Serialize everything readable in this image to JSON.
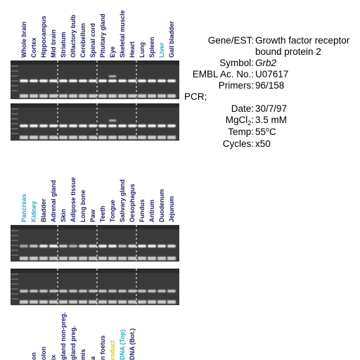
{
  "panel_top": {
    "lanes": [
      {
        "label": "Whole brain",
        "color": "#1c1c70"
      },
      {
        "label": "Cortex",
        "color": "#1c1c70"
      },
      {
        "label": "Hippocampus",
        "color": "#1c1c70"
      },
      {
        "label": "Mid brain",
        "color": "#1c1c70"
      },
      {
        "label": "Striatum",
        "color": "#1c1c70"
      },
      {
        "label": "Olfactory bulb",
        "color": "#1c1c70"
      },
      {
        "label": "Cerebellum",
        "color": "#1c1c70"
      },
      {
        "label": "Spinal cord",
        "color": "#1c1c70"
      },
      {
        "label": "Pituitary gland",
        "color": "#1c1c70"
      },
      {
        "label": "Eye",
        "color": "#1c1c70"
      },
      {
        "label": "Skeletal muscle",
        "color": "#1c1c70"
      },
      {
        "label": "Heart",
        "color": "#1c1c70"
      },
      {
        "label": "Lung",
        "color": "#1c1c70"
      },
      {
        "label": "Spleen",
        "color": "#1c1c70"
      },
      {
        "label": "Liver",
        "color": "#22a8d8"
      },
      {
        "label": "Gall bladder",
        "color": "#1c1c70"
      }
    ]
  },
  "info": {
    "gene": {
      "key": "Gene/EST:",
      "lines": [
        "Growth factor receptor",
        "bound protein 2"
      ]
    },
    "symbol": {
      "key": "Symbol:",
      "value": "Grb2"
    },
    "embl": {
      "key": "EMBL Ac. No.:",
      "value": "U07617"
    },
    "primers": {
      "key": "Primers:",
      "value": "96/158"
    },
    "pcr": "PCR;",
    "date": {
      "key": "Date:",
      "value": "30/7/97"
    },
    "mgcl": {
      "key": "MgCl",
      "sub": "2",
      "colon": ":",
      "value": "3.5 mM"
    },
    "temp": {
      "key": "Temp:",
      "value": "55",
      "sup": "o",
      "unit": "C"
    },
    "cycles": {
      "key": "Cycles:",
      "value": "x50"
    }
  },
  "panel_middle": {
    "lanes": [
      {
        "label": "Pancreas",
        "color": "#22a8d8"
      },
      {
        "label": "Kidney",
        "color": "#22a8d8"
      },
      {
        "label": "Bladder",
        "color": "#1c1c70"
      },
      {
        "label": "Adrenal gland",
        "color": "#1c1c70"
      },
      {
        "label": "Skin",
        "color": "#1c1c70"
      },
      {
        "label": "Adipose tissue",
        "color": "#1c1c70"
      },
      {
        "label": "Long bone",
        "color": "#1c1c70"
      },
      {
        "label": "Paw",
        "color": "#1c1c70"
      },
      {
        "label": "Teeth",
        "color": "#1c1c70"
      },
      {
        "label": "Tongue",
        "color": "#1c1c70"
      },
      {
        "label": "Salivary gland",
        "color": "#1c1c70"
      },
      {
        "label": "Oesophagus",
        "color": "#1c1c70"
      },
      {
        "label": "Fundus",
        "color": "#1c1c70"
      },
      {
        "label": "Antrum",
        "color": "#1c1c70"
      },
      {
        "label": "Duodenum",
        "color": "#1c1c70"
      },
      {
        "label": "Jejunum",
        "color": "#1c1c70"
      }
    ]
  },
  "panel_bottom": {
    "lanes": [
      {
        "label": "on",
        "color": "#1c1c70"
      },
      {
        "label": "olon",
        "color": "#1c1c70"
      },
      {
        "label": "ix",
        "color": "#1c1c70"
      },
      {
        "label": "gland non-preg.",
        "color": "#1c1c70"
      },
      {
        "label": "gland preg.",
        "color": "#1c1c70"
      },
      {
        "label": "mis",
        "color": "#1c1c70"
      },
      {
        "label": "a",
        "color": "#1c1c70"
      },
      {
        "label": "n foetus",
        "color": "#1c1c70"
      },
      {
        "label": "roduct",
        "color": "#e8c020"
      },
      {
        "label": "DNA (Top)",
        "color": "#22a8d8"
      },
      {
        "label": "DNA (Bot.)",
        "color": "#1c1c70"
      }
    ]
  }
}
